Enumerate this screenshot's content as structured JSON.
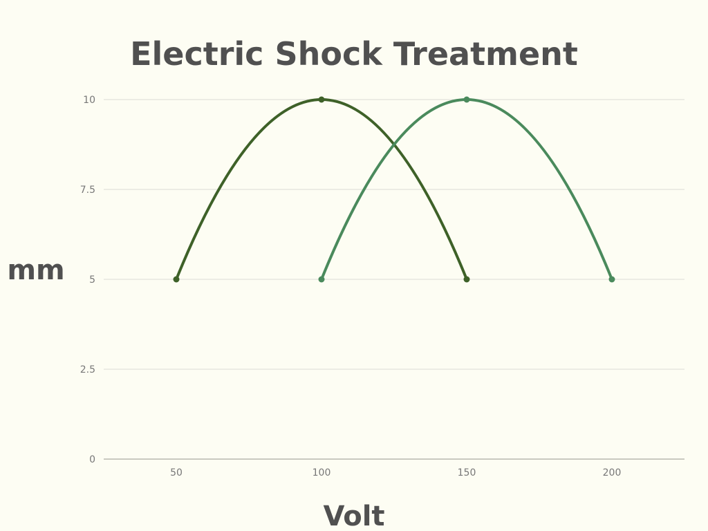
{
  "chart_data": {
    "type": "line",
    "title": "Electric Shock Treatment",
    "xlabel": "Volt",
    "ylabel": "mm",
    "xlim": [
      25,
      225
    ],
    "ylim": [
      0,
      10
    ],
    "x_ticks": [
      50,
      100,
      150,
      200
    ],
    "y_ticks": [
      0,
      2.5,
      5,
      7.5,
      10
    ],
    "y_tick_labels": [
      "0",
      "2.5",
      "5",
      "7.5",
      "10"
    ],
    "grid": true,
    "legend": "none",
    "smooth": true,
    "series": [
      {
        "color": "#3e6128",
        "points": [
          [
            50,
            5
          ],
          [
            100,
            10
          ],
          [
            150,
            5
          ]
        ]
      },
      {
        "color": "#4a8a5c",
        "points": [
          [
            100,
            5
          ],
          [
            150,
            10
          ],
          [
            200,
            5
          ]
        ]
      }
    ]
  }
}
